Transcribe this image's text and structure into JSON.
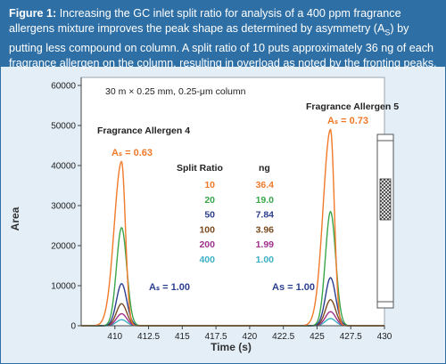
{
  "caption": {
    "label": "Figure 1:",
    "text": "Increasing the GC inlet split ratio for analysis of a 400 ppm fragrance allergens mixture improves the peak shape as determined by asymmetry (A",
    "sub": "S",
    "text2": ") by putting less compound on column. A split ratio of 10 puts approximately 36 ng of each fragrance allergen on the column, resulting in overload as noted by the fronting peaks."
  },
  "colors": {
    "caption_bg": "#2e6fa6",
    "panel_bg": "#e3eef7",
    "accent_orange": "#f07a2a"
  },
  "chart_data": {
    "type": "line",
    "xlabel": "Time (s)",
    "ylabel": "Area",
    "xlim": [
      407.5,
      430
    ],
    "ylim": [
      0,
      62000
    ],
    "x_ticks": [
      "410",
      "412.5",
      "415",
      "417.5",
      "420",
      "422.5",
      "425",
      "427.5",
      "430"
    ],
    "x_tick_values": [
      410,
      412.5,
      415,
      417.5,
      420,
      422.5,
      425,
      427.5,
      430
    ],
    "y_ticks": [
      "0",
      "10000",
      "20000",
      "30000",
      "40000",
      "50000",
      "60000"
    ],
    "y_tick_values": [
      0,
      10000,
      20000,
      30000,
      40000,
      50000,
      60000
    ],
    "column_note": "30 m × 0.25 mm, 0.25-μm column",
    "peaks": [
      {
        "name": "Fragrance Allergen 4",
        "center": 410.5,
        "as_high": "Aₛ = 0.63",
        "as_low": "Aₛ = 1.00"
      },
      {
        "name": "Fragrance Allergen 5",
        "center": 426.0,
        "as_high": "Aₛ = 0.73",
        "as_low": "As = 1.00"
      }
    ],
    "table_header": {
      "ratio": "Split Ratio",
      "ng": "ng"
    },
    "series": [
      {
        "split_ratio": "10",
        "ng": "36.4",
        "color": "#f07a2a",
        "peak_values": [
          41000,
          49000
        ],
        "fronting": true
      },
      {
        "split_ratio": "20",
        "ng": "19.0",
        "color": "#3aa64a",
        "peak_values": [
          24500,
          28500
        ],
        "fronting": false
      },
      {
        "split_ratio": "50",
        "ng": "7.84",
        "color": "#2b3f8e",
        "peak_values": [
          10500,
          12000
        ],
        "fronting": false
      },
      {
        "split_ratio": "100",
        "ng": "3.96",
        "color": "#7a4a1e",
        "peak_values": [
          5500,
          6500
        ],
        "fronting": false
      },
      {
        "split_ratio": "200",
        "ng": "1.99",
        "color": "#a0308c",
        "peak_values": [
          3000,
          3500
        ],
        "fronting": false
      },
      {
        "split_ratio": "400",
        "ng": "1.00",
        "color": "#3bb0c6",
        "peak_values": [
          1500,
          1800
        ],
        "fronting": false
      }
    ]
  }
}
